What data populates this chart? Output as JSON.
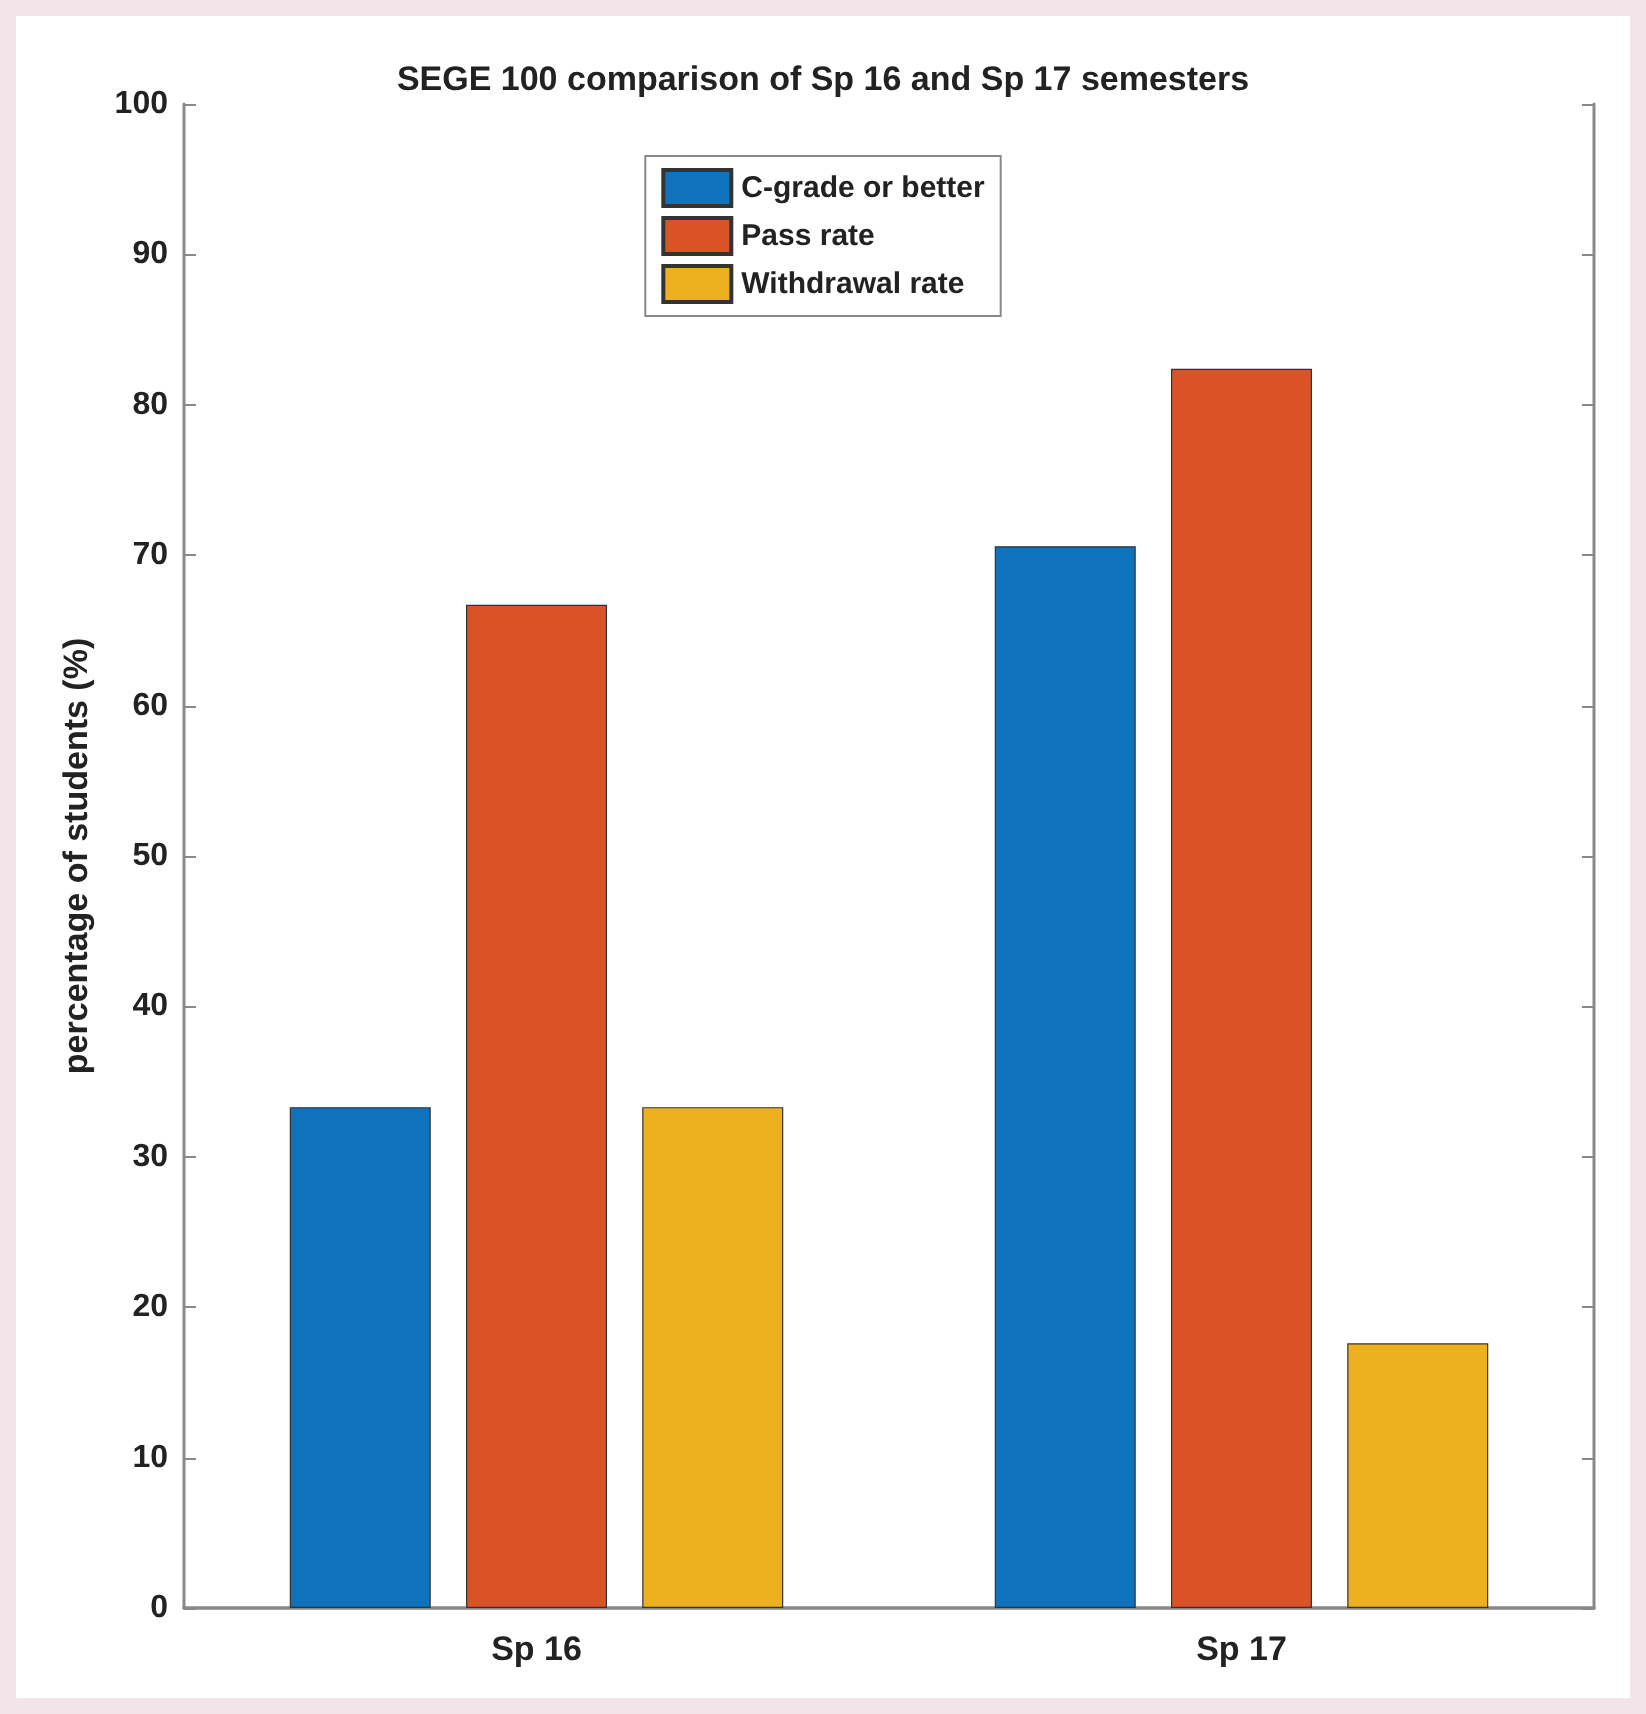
{
  "chart_data": {
    "type": "bar",
    "title": "SEGE 100 comparison of Sp 16 and Sp 17 semesters",
    "ylabel": "percentage of students (%)",
    "categories": [
      "Sp 16",
      "Sp 17"
    ],
    "series": [
      {
        "name": "C-grade or better",
        "color": "#0e72bd",
        "values": [
          33.3,
          70.6
        ]
      },
      {
        "name": "Pass rate",
        "color": "#d95326",
        "values": [
          66.7,
          82.4
        ]
      },
      {
        "name": "Withdrawal rate",
        "color": "#edb120",
        "values": [
          33.3,
          17.6
        ]
      }
    ],
    "ylim": [
      0,
      100
    ],
    "yticks": [
      0,
      10,
      20,
      30,
      40,
      50,
      60,
      70,
      80,
      90,
      100
    ],
    "grid": false,
    "legend": "top"
  }
}
